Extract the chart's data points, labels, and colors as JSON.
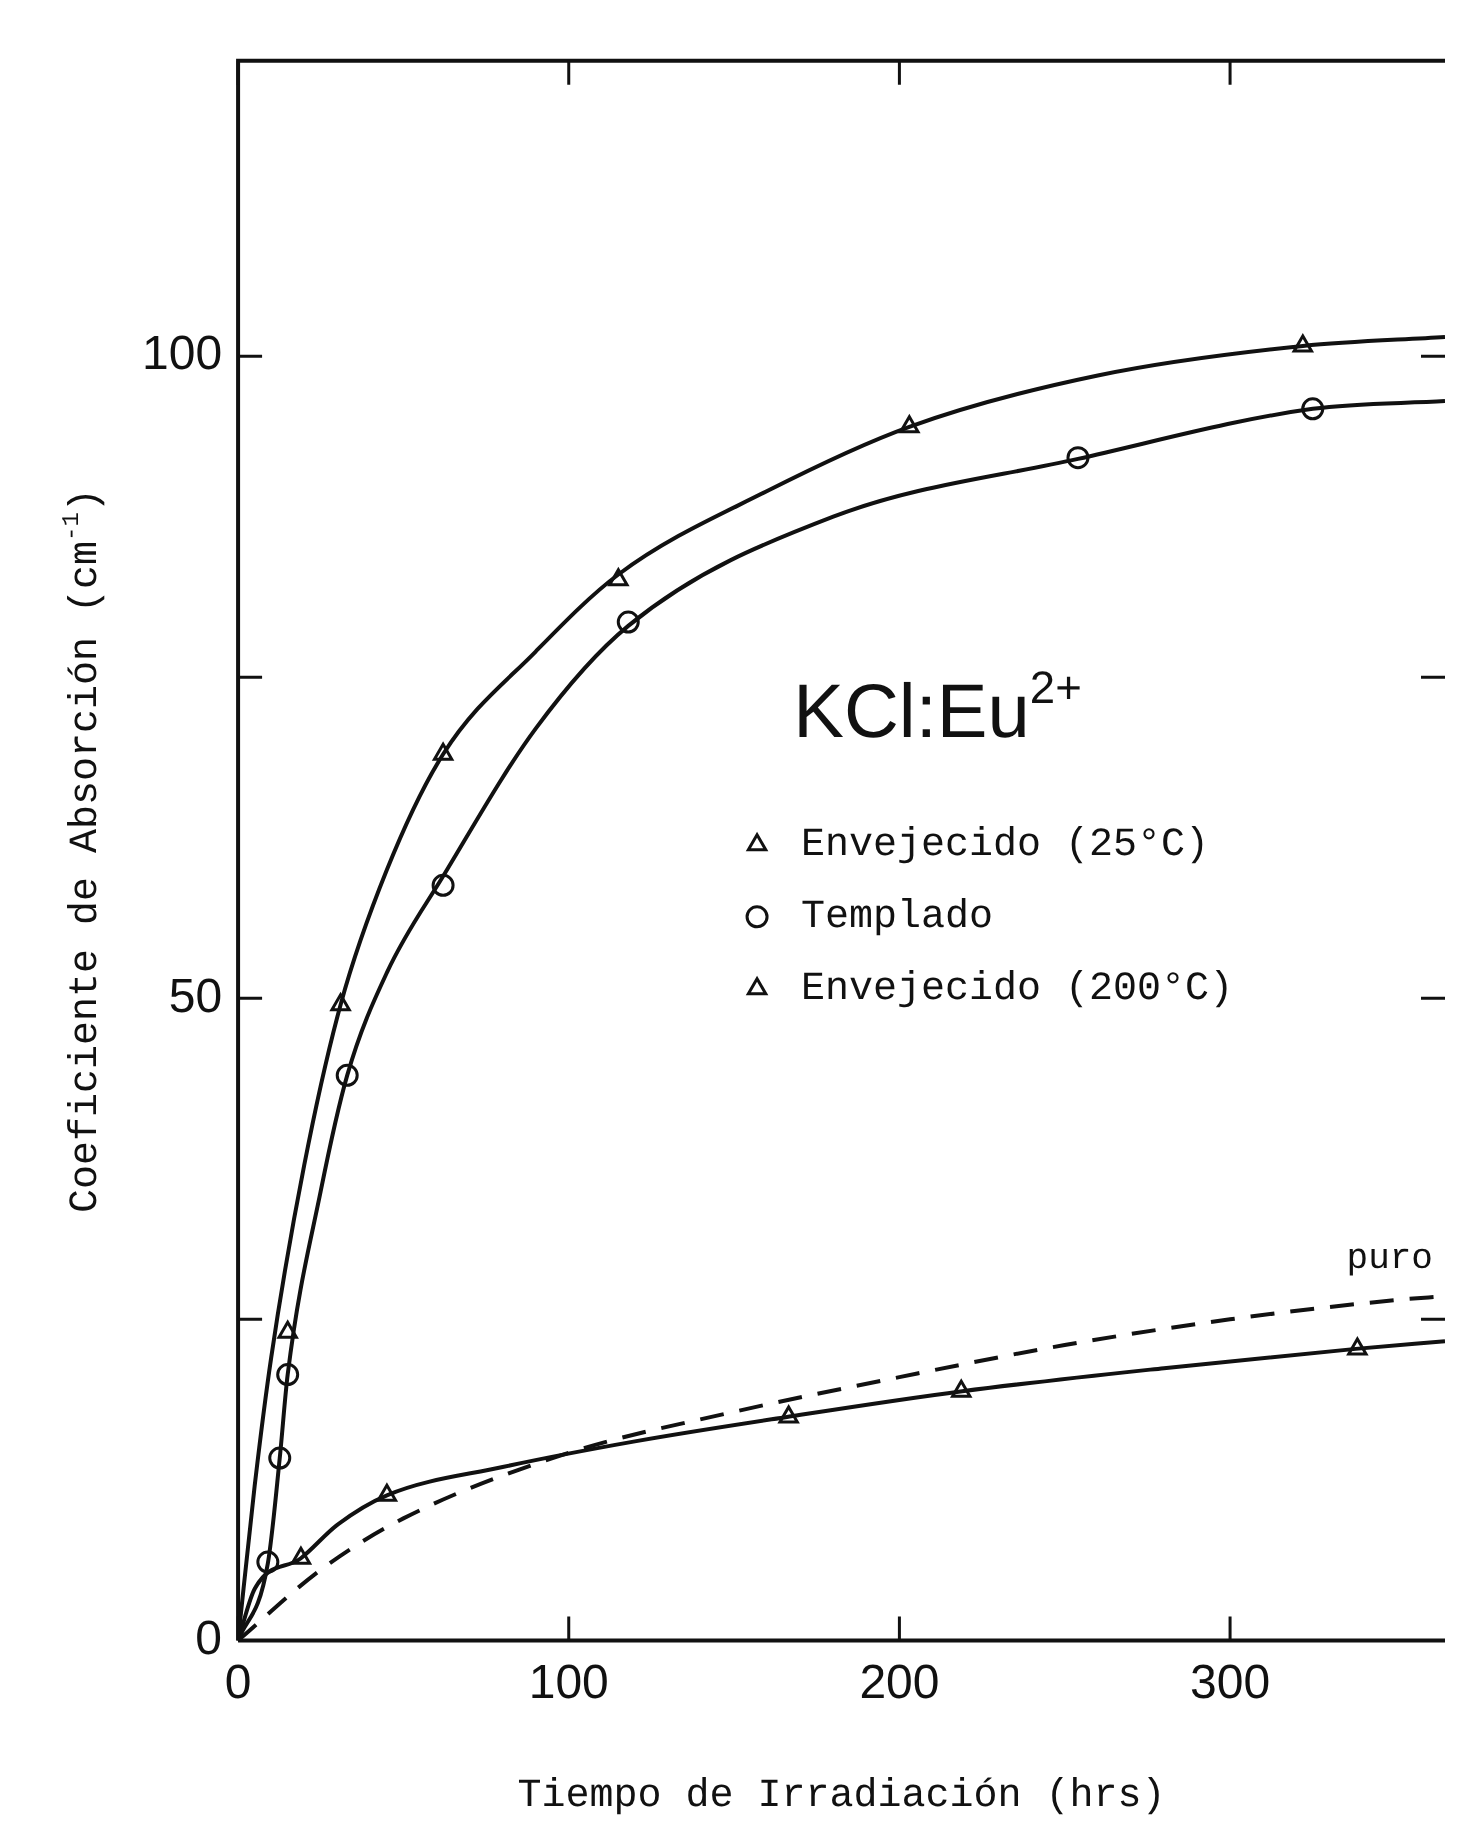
{
  "chart_data": {
    "type": "scatter",
    "xlabel": "Tiempo de Irradiación (hrs)",
    "ylabel": "Coeficiente de Absorción (cm$^{-1}$)",
    "annotations": [
      "KCl:Eu$^{2+}$"
    ],
    "xlim": [
      0,
      365
    ],
    "xticks": [
      0,
      100,
      200,
      300
    ],
    "ylim": [
      0,
      123
    ],
    "yticks": [
      0,
      {
        "value": 25,
        "label": null
      },
      50,
      {
        "value": 75,
        "label": null
      },
      100
    ],
    "grid": false,
    "legend": "right",
    "marker": "circle",
    "series": [
      {
        "name": "Envejecido (25°C)",
        "type": "scatter",
        "marker": "triangle",
        "color": "#111111",
        "x": [
          15,
          31,
          62,
          115,
          203,
          322
        ],
        "values": [
          24,
          49.5,
          69,
          82.6,
          94.5,
          100.8
        ]
      },
      {
        "name": "Templado",
        "color": "#111111",
        "x": [
          9,
          12.6,
          15,
          33,
          62,
          118,
          254,
          325
        ],
        "values": [
          6.1,
          14.2,
          20.7,
          44,
          58.8,
          79.3,
          92.1,
          95.9
        ]
      },
      {
        "name": "Envejecido (200°C)",
        "type": "scatter",
        "marker": "triangle",
        "color": "#111111",
        "x": [
          19,
          45,
          166.5,
          218.7,
          338.5
        ],
        "values": [
          6.4,
          11.3,
          17.4,
          19.4,
          22.7
        ]
      },
      {
        "type": "line",
        "marker": "none",
        "line_style": "solid",
        "color": "#111111",
        "x": [
          0,
          5,
          10,
          20,
          31,
          45,
          62,
          90,
          115,
          160,
          203,
          260,
          322,
          365
        ],
        "values": [
          0,
          12,
          22,
          37,
          49.5,
          60,
          69,
          77,
          83,
          89.5,
          94.5,
          98.5,
          100.8,
          101.5
        ]
      },
      {
        "type": "line",
        "marker": "none",
        "line_style": "solid",
        "color": "#111111",
        "x": [
          0,
          9,
          12.6,
          15,
          25,
          33,
          45,
          62,
          90,
          118,
          180,
          254,
          325,
          365
        ],
        "values": [
          0,
          6,
          14.2,
          20.7,
          35,
          44,
          52,
          59.5,
          71,
          79,
          87.5,
          92,
          95.9,
          96.5
        ]
      },
      {
        "type": "line",
        "marker": "none",
        "line_style": "solid",
        "color": "#111111",
        "x": [
          0,
          5,
          19,
          30,
          45,
          80,
          120,
          166,
          219,
          280,
          338,
          365
        ],
        "values": [
          0,
          4,
          6.4,
          9,
          11.3,
          13.5,
          15.5,
          17.4,
          19.4,
          21.2,
          22.7,
          23.3
        ]
      },
      {
        "name": "puro",
        "type": "line",
        "marker": "none",
        "line_style": "dashed",
        "color": "#111111",
        "x": [
          0,
          25,
          50,
          100,
          150,
          200,
          250,
          300,
          350,
          365
        ],
        "values": [
          0,
          5.5,
          9.5,
          14.6,
          17.8,
          20.5,
          23,
          25,
          26.5,
          26.8
        ]
      }
    ]
  }
}
